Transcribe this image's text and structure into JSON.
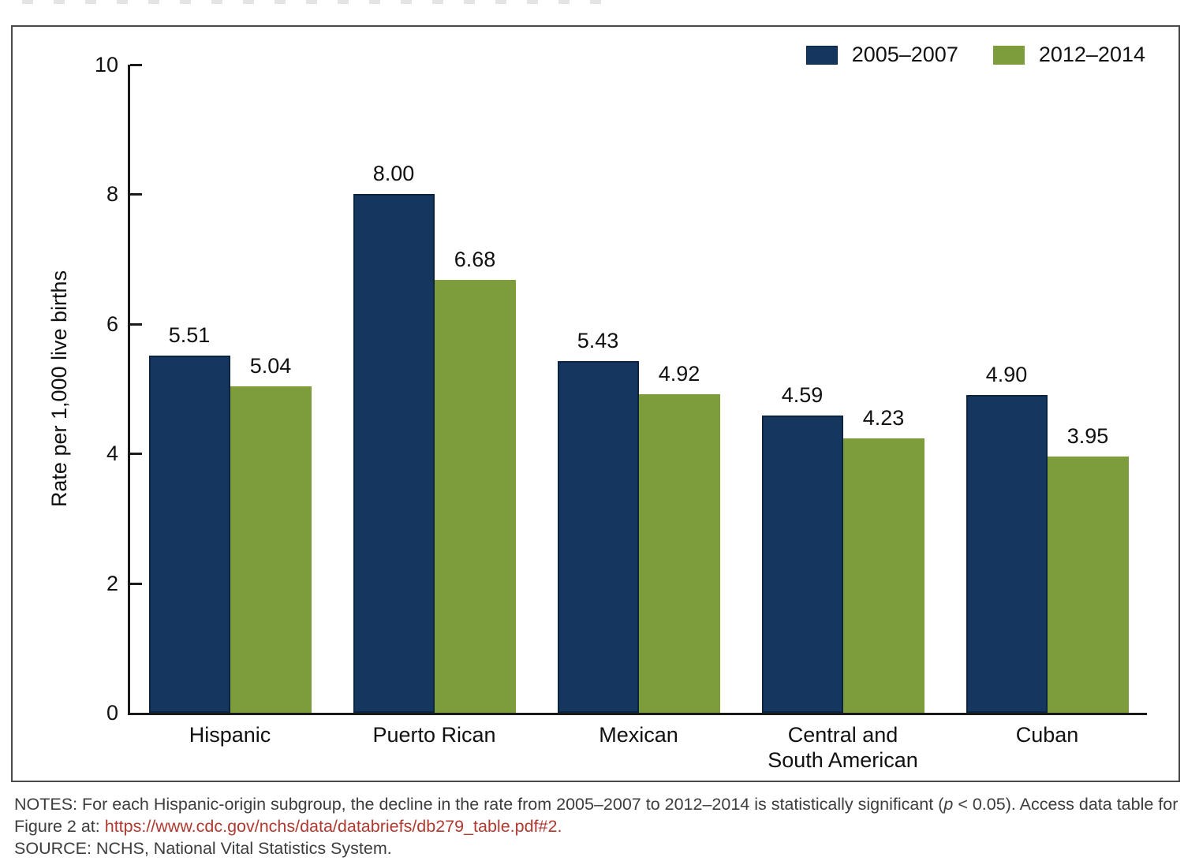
{
  "chart_data": {
    "type": "bar",
    "categories": [
      [
        "Hispanic"
      ],
      [
        "Puerto Rican"
      ],
      [
        "Mexican"
      ],
      [
        "Central and",
        "South American"
      ],
      [
        "Cuban"
      ]
    ],
    "series": [
      {
        "name": "2005–2007",
        "color": "#14365f",
        "border_color": "#0b2440",
        "values": [
          5.51,
          8.0,
          5.43,
          4.59,
          4.9
        ]
      },
      {
        "name": "2012–2014",
        "color": "#7d9c3c",
        "border_color": "#7d9c3c",
        "values": [
          5.04,
          6.68,
          4.92,
          4.23,
          3.95
        ]
      }
    ],
    "title": "",
    "xlabel": "",
    "ylabel": "Rate per 1,000 live births",
    "ylim": [
      0,
      10
    ],
    "yticks": [
      0,
      2,
      4,
      6,
      8,
      10
    ],
    "grid": false,
    "legend_position": "top-right",
    "value_labels": true,
    "value_label_decimals": 2,
    "axis_color": "#1a1a1a"
  },
  "notes": {
    "line1_before_p": "NOTES: For each Hispanic-origin subgroup, the decline in the rate from 2005–2007 to 2012–2014 is statistically significant (",
    "p_symbol": "p",
    "line1_after_p": " < 0.05). Access data table for",
    "line2_prefix": "Figure 2 at: ",
    "link_text": "https://www.cdc.gov/nchs/data/databriefs/db279_table.pdf#2.",
    "source": "SOURCE: NCHS, National Vital Statistics System.",
    "link_color": "#b13a30"
  }
}
